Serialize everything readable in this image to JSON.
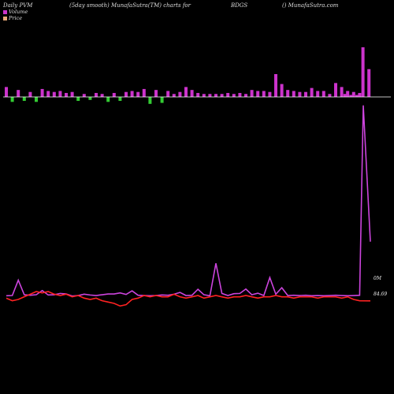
{
  "header": {
    "left": "Daily PVM",
    "mid": "(5day smooth) MunafaSutra(TM) charts for",
    "symbol": "BDGS",
    "right": "() MunafaSutra.com"
  },
  "legend": {
    "volume_label": "Volume",
    "price_label": "Price",
    "volume_color": "#cc33cc",
    "price_color": "#e8a878"
  },
  "labels": {
    "volume_axis": "0M",
    "price_axis": "84.69"
  },
  "colors": {
    "up_bar": "#cc33cc",
    "down_bar": "#33cc33",
    "volume_line": "#cc44dd",
    "price_line": "#ff2222",
    "baseline": "#ffffff"
  },
  "chart_data": {
    "type": "line",
    "x_count": 60,
    "pvm_bars": [
      10,
      -5,
      7,
      -4,
      5,
      -5,
      8,
      6,
      5,
      6,
      4,
      5,
      -4,
      3,
      -3,
      4,
      3,
      -5,
      4,
      -4,
      5,
      6,
      5,
      8,
      -7,
      7,
      -6,
      6,
      3,
      5,
      10,
      7,
      4,
      3,
      3,
      3,
      3,
      4,
      3,
      4,
      3,
      7,
      6,
      6,
      5,
      23,
      13,
      7,
      6,
      5,
      5,
      9,
      6,
      6,
      3,
      14,
      10,
      6,
      5,
      4
    ],
    "pvm_tail": [
      3,
      2,
      2,
      50,
      28
    ],
    "volume_line": [
      0.5,
      0.6,
      6.5,
      0.9,
      0.7,
      0.9,
      2.5,
      0.8,
      0.9,
      1.4,
      1.2,
      0.4,
      0.6,
      1.1,
      0.8,
      0.6,
      0.9,
      1.2,
      1.2,
      1.6,
      1.0,
      2.4,
      0.7,
      0.6,
      0.5,
      0.6,
      0.8,
      0.7,
      1.1,
      1.8,
      0.6,
      0.7,
      3.0,
      0.9,
      0.5,
      13.0,
      1.4,
      0.6,
      1.3,
      1.4,
      3.1,
      0.9,
      1.5,
      0.6,
      7.5,
      1.1,
      3.6,
      0.6,
      0.7,
      0.6,
      0.7,
      0.5,
      0.6,
      0.5,
      0.6,
      0.7,
      0.6,
      0.5,
      0.6,
      0.7
    ],
    "volume_tail": [
      97.0,
      3.0
    ],
    "price_line": [
      84.9,
      84.7,
      84.8,
      85.0,
      85.2,
      85.4,
      85.3,
      85.4,
      85.2,
      85.1,
      85.2,
      85.0,
      85.1,
      84.9,
      84.8,
      84.9,
      84.7,
      84.6,
      84.5,
      84.3,
      84.4,
      84.8,
      84.9,
      85.1,
      85.0,
      85.1,
      85.0,
      85.0,
      85.2,
      85.0,
      84.9,
      85.0,
      85.1,
      84.9,
      85.0,
      85.1,
      85.0,
      84.9,
      85.0,
      85.0,
      85.1,
      85.0,
      84.9,
      85.0,
      85.0,
      85.1,
      85.0,
      85.0,
      84.9,
      85.0,
      85.0,
      85.0,
      84.9,
      85.0,
      85.0,
      85.0,
      84.9,
      85.0,
      84.8,
      84.7
    ],
    "price_tail": [
      84.69
    ],
    "ylim_price": [
      83.6,
      86.6
    ]
  }
}
